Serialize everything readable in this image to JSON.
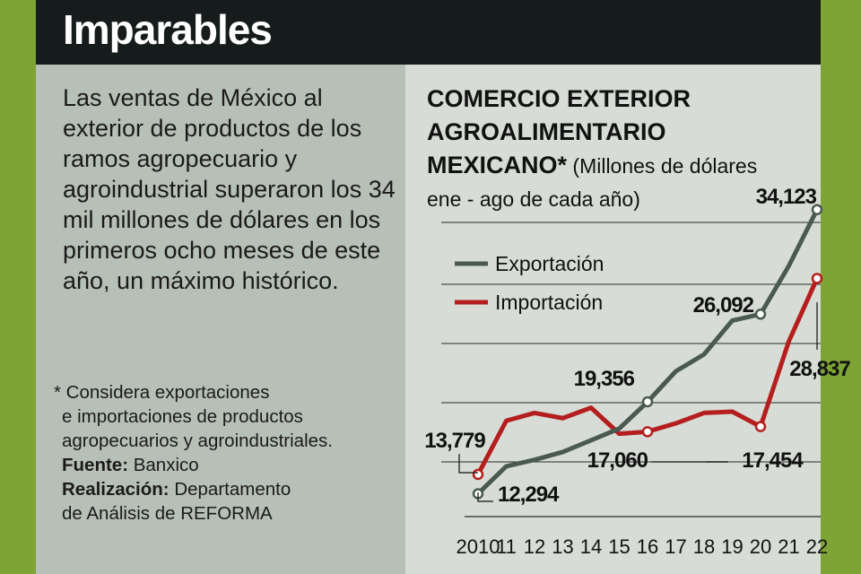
{
  "header": {
    "title": "Imparables"
  },
  "intro": "Las ventas de México al exterior de productos de los ramos agropecuario y agroindustrial superaron los 34 mil millones de dólares en los primeros ocho meses de este año, un máximo histórico.",
  "notes": {
    "asterisk_line1": "* Considera exportaciones",
    "asterisk_line2": "e importaciones de productos",
    "asterisk_line3": "agropecuarios y agroindustriales.",
    "source_label": "Fuente:",
    "source_value": " Banxico",
    "credit_label": "Realización:",
    "credit_value_line1": " Departamento",
    "credit_value_line2": "de Análisis de REFORMA"
  },
  "chart_title": {
    "line1": "COMERCIO EXTERIOR",
    "line2": "AGROALIMENTARIO",
    "line3": "MEXICANO*",
    "unit_line1": " (Millones de dólares",
    "unit_line2": "ene - ago de cada año)"
  },
  "colors": {
    "export": "#4a5a52",
    "import": "#b51e1e",
    "gridline": "#2a2a2a"
  },
  "chart_data": {
    "type": "line",
    "title": "COMERCIO EXTERIOR AGROALIMENTARIO MEXICANO*",
    "subtitle": "(Millones de dólares ene - ago de cada año)",
    "categories": [
      "2010",
      "11",
      "12",
      "13",
      "14",
      "15",
      "16",
      "17",
      "18",
      "19",
      "20",
      "21",
      "22"
    ],
    "series": [
      {
        "name": "Exportación",
        "values": [
          12294,
          14400,
          14900,
          15500,
          16400,
          17300,
          19356,
          21700,
          23000,
          25600,
          26092,
          29800,
          34123
        ]
      },
      {
        "name": "Importación",
        "values": [
          13779,
          17900,
          18500,
          18100,
          18900,
          16900,
          17060,
          17700,
          18500,
          18600,
          17454,
          24000,
          28837
        ]
      }
    ],
    "data_labels": [
      {
        "series": "Exportación",
        "x": "2010",
        "text": "12,294"
      },
      {
        "series": "Importación",
        "x": "2010",
        "text": "13,779"
      },
      {
        "series": "Exportación",
        "x": "16",
        "text": "19,356"
      },
      {
        "series": "Importación",
        "x": "16",
        "text": "17,060"
      },
      {
        "series": "Exportación",
        "x": "20",
        "text": "26,092"
      },
      {
        "series": "Importación",
        "x": "20",
        "text": "17,454"
      },
      {
        "series": "Exportación",
        "x": "22",
        "text": "34,123"
      },
      {
        "series": "Importación",
        "x": "22",
        "text": "28,837"
      }
    ],
    "ylim": [
      11500,
      37000
    ],
    "legend": "top-left",
    "grid": true
  }
}
